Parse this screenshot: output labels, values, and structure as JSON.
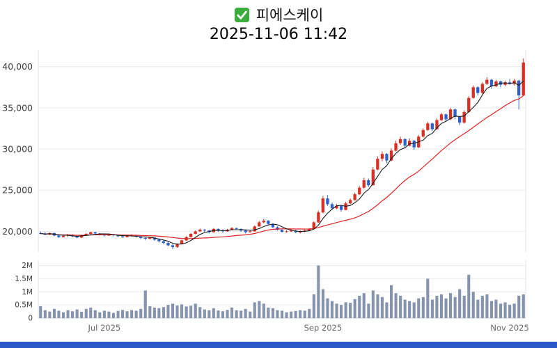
{
  "title": {
    "stock_name": "피에스케이",
    "datetime": "2025-11-06 11:42",
    "check_icon_color": "#3aad3c"
  },
  "footer": {
    "bar_color": "#2b59c9"
  },
  "chart_data": {
    "type": "candlestick+volume",
    "title": "피에스케이 2025-11-06 11:42",
    "price_axis": {
      "min": 17500,
      "max": 42000,
      "ticks": [
        20000,
        25000,
        30000,
        35000,
        40000
      ],
      "tick_labels": [
        "20,000",
        "25,000",
        "30,000",
        "35,000",
        "40,000"
      ]
    },
    "volume_axis": {
      "min": 0,
      "max": 2200000,
      "ticks": [
        0,
        500000,
        1000000,
        1500000,
        2000000
      ],
      "tick_labels": [
        "0",
        "0.5M",
        "1M",
        "1.5M",
        "2M"
      ]
    },
    "x_axis": {
      "tick_labels": [
        "Jul 2025",
        "Sep 2025",
        "Nov 2025"
      ],
      "tick_indices": [
        14,
        62,
        103
      ]
    },
    "colors": {
      "up": "#d93025",
      "down": "#2f62cc",
      "ma_fast": "#1a1a1a",
      "ma_slow": "#dd2222",
      "volume_bar": "#8априver",
      "grid": "#ebebf0"
    },
    "ma_fast_period": 5,
    "ma_slow_period": 20,
    "candle_format": [
      "open",
      "high",
      "low",
      "close",
      "volume_millions"
    ],
    "candles": [
      [
        19800,
        19950,
        19650,
        19750,
        0.45
      ],
      [
        19750,
        19900,
        19550,
        19600,
        0.3
      ],
      [
        19600,
        19850,
        19550,
        19800,
        0.25
      ],
      [
        19800,
        19850,
        19400,
        19500,
        0.35
      ],
      [
        19500,
        19600,
        19200,
        19300,
        0.28
      ],
      [
        19300,
        19550,
        19250,
        19450,
        0.22
      ],
      [
        19450,
        19700,
        19350,
        19600,
        0.3
      ],
      [
        19600,
        19650,
        19300,
        19400,
        0.26
      ],
      [
        19400,
        19500,
        19150,
        19250,
        0.33
      ],
      [
        19250,
        19600,
        19200,
        19550,
        0.24
      ],
      [
        19550,
        19800,
        19450,
        19700,
        0.35
      ],
      [
        19700,
        19950,
        19600,
        19900,
        0.4
      ],
      [
        19900,
        19950,
        19650,
        19750,
        0.3
      ],
      [
        19750,
        19800,
        19500,
        19600,
        0.22
      ],
      [
        19600,
        19700,
        19400,
        19500,
        0.28
      ],
      [
        19500,
        19750,
        19450,
        19650,
        0.25
      ],
      [
        19650,
        19700,
        19400,
        19550,
        0.2
      ],
      [
        19550,
        19600,
        19300,
        19400,
        0.27
      ],
      [
        19400,
        19500,
        19200,
        19300,
        0.31
      ],
      [
        19300,
        19600,
        19250,
        19450,
        0.26
      ],
      [
        19450,
        19650,
        19350,
        19500,
        0.3
      ],
      [
        19500,
        19550,
        19250,
        19350,
        0.28
      ],
      [
        19350,
        19400,
        19050,
        19200,
        0.35
      ],
      [
        19200,
        19300,
        18950,
        19100,
        1.05
      ],
      [
        19100,
        19350,
        19000,
        19250,
        0.45
      ],
      [
        19250,
        19300,
        18850,
        19000,
        0.4
      ],
      [
        19000,
        19100,
        18650,
        18800,
        0.38
      ],
      [
        18800,
        18900,
        18450,
        18600,
        0.42
      ],
      [
        18600,
        18700,
        18200,
        18300,
        0.5
      ],
      [
        18300,
        18450,
        17850,
        18100,
        0.55
      ],
      [
        18100,
        18550,
        18000,
        18450,
        0.48
      ],
      [
        18450,
        19000,
        18400,
        18900,
        0.52
      ],
      [
        18900,
        19400,
        18850,
        19300,
        0.44
      ],
      [
        19300,
        19800,
        19250,
        19700,
        0.47
      ],
      [
        19700,
        20100,
        19650,
        20000,
        0.55
      ],
      [
        20000,
        20350,
        19900,
        20200,
        0.42
      ],
      [
        20200,
        20300,
        19950,
        20100,
        0.33
      ],
      [
        20100,
        20150,
        19750,
        19900,
        0.3
      ],
      [
        19900,
        20400,
        19850,
        20300,
        0.38
      ],
      [
        20300,
        20350,
        19950,
        20100,
        0.29
      ],
      [
        20100,
        20250,
        19850,
        20000,
        0.26
      ],
      [
        20000,
        20300,
        19950,
        20200,
        0.31
      ],
      [
        20200,
        20500,
        20150,
        20400,
        0.4
      ],
      [
        20400,
        20450,
        20150,
        20300,
        0.3
      ],
      [
        20300,
        20350,
        19950,
        20100,
        0.28
      ],
      [
        20100,
        20150,
        19750,
        19900,
        0.35
      ],
      [
        19900,
        20150,
        19850,
        20000,
        0.25
      ],
      [
        20000,
        20700,
        19950,
        20600,
        0.6
      ],
      [
        20600,
        21250,
        20550,
        21100,
        0.65
      ],
      [
        21100,
        21500,
        21000,
        21300,
        0.55
      ],
      [
        21300,
        21350,
        20800,
        20900,
        0.4
      ],
      [
        20900,
        21000,
        20400,
        20500,
        0.38
      ],
      [
        20500,
        20600,
        20100,
        20200,
        0.3
      ],
      [
        20200,
        20250,
        19850,
        19950,
        0.28
      ],
      [
        19950,
        20150,
        19850,
        20000,
        0.22
      ],
      [
        20000,
        20250,
        19950,
        20100,
        0.25
      ],
      [
        20100,
        20150,
        19800,
        19900,
        0.27
      ],
      [
        19900,
        20100,
        19750,
        19950,
        0.3
      ],
      [
        19950,
        20200,
        19900,
        20100,
        0.28
      ],
      [
        20100,
        20400,
        20050,
        20300,
        0.35
      ],
      [
        20300,
        21200,
        20250,
        21100,
        0.9
      ],
      [
        21100,
        22500,
        21050,
        22300,
        2.0
      ],
      [
        22300,
        24300,
        22200,
        24000,
        1.1
      ],
      [
        24000,
        24400,
        23100,
        23300,
        0.75
      ],
      [
        23300,
        23500,
        22600,
        22800,
        0.65
      ],
      [
        22800,
        23300,
        22700,
        23100,
        0.55
      ],
      [
        23100,
        23200,
        22400,
        22600,
        0.5
      ],
      [
        22600,
        23600,
        22550,
        23400,
        0.6
      ],
      [
        23400,
        24000,
        23300,
        23800,
        0.58
      ],
      [
        23800,
        24700,
        23700,
        24500,
        0.72
      ],
      [
        24500,
        25500,
        24400,
        25300,
        0.85
      ],
      [
        25300,
        26500,
        25200,
        26200,
        0.95
      ],
      [
        26200,
        26400,
        25400,
        25600,
        0.55
      ],
      [
        25600,
        27800,
        25550,
        27500,
        1.05
      ],
      [
        27500,
        29100,
        27400,
        28800,
        0.9
      ],
      [
        28800,
        29700,
        28500,
        29400,
        0.8
      ],
      [
        29400,
        29500,
        28300,
        28600,
        0.6
      ],
      [
        28600,
        30100,
        28500,
        29800,
        1.25
      ],
      [
        29800,
        31000,
        29700,
        30700,
        0.95
      ],
      [
        30700,
        31500,
        30500,
        31200,
        0.85
      ],
      [
        31200,
        31300,
        30100,
        30400,
        0.7
      ],
      [
        30400,
        31300,
        30300,
        31000,
        0.65
      ],
      [
        31000,
        31100,
        29900,
        30200,
        0.6
      ],
      [
        30200,
        31700,
        30100,
        31500,
        0.75
      ],
      [
        31500,
        32500,
        31400,
        32300,
        0.8
      ],
      [
        32300,
        33300,
        32200,
        33100,
        1.5
      ],
      [
        33100,
        33200,
        32200,
        32400,
        0.7
      ],
      [
        32400,
        33700,
        32300,
        33500,
        0.85
      ],
      [
        33500,
        34400,
        33400,
        34200,
        0.9
      ],
      [
        34200,
        34300,
        33300,
        33600,
        0.75
      ],
      [
        33600,
        35000,
        33500,
        34800,
        0.95
      ],
      [
        34800,
        34900,
        33600,
        33900,
        0.8
      ],
      [
        33900,
        34000,
        32900,
        33200,
        1.1
      ],
      [
        33200,
        34700,
        33100,
        34500,
        0.85
      ],
      [
        34500,
        36400,
        34400,
        36200,
        1.65
      ],
      [
        36200,
        37700,
        36100,
        37500,
        1.0
      ],
      [
        37500,
        37600,
        36500,
        36800,
        0.7
      ],
      [
        36800,
        38100,
        36700,
        37900,
        0.85
      ],
      [
        37900,
        38700,
        37800,
        38400,
        0.9
      ],
      [
        38400,
        38500,
        37300,
        37600,
        0.65
      ],
      [
        37600,
        38400,
        37500,
        38200,
        0.7
      ],
      [
        38200,
        38300,
        37500,
        37800,
        0.55
      ],
      [
        37800,
        38300,
        37600,
        38100,
        0.6
      ],
      [
        38100,
        38500,
        37800,
        37900,
        0.5
      ],
      [
        37900,
        38500,
        37700,
        38300,
        0.55
      ],
      [
        38300,
        38400,
        34800,
        36500,
        0.85
      ],
      [
        36500,
        41000,
        36400,
        40500,
        0.9
      ]
    ],
    "colors_fixed": {
      "up": "#d93025",
      "down": "#2f62cc",
      "ma_fast": "#1a1a1a",
      "ma_slow": "#dd2222",
      "volume_bar": "#8593ad",
      "grid": "#ebebf0",
      "axis_text": "#3c3c3c",
      "x_text": "#666666",
      "border": "#dfe3ea"
    }
  }
}
